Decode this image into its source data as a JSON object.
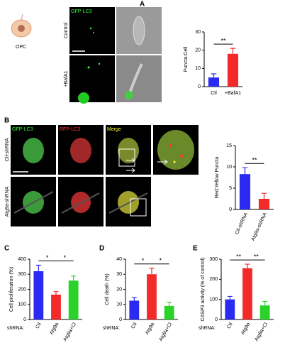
{
  "panels": {
    "A": {
      "icon_label": "OPC",
      "columns": [
        "GFP-LC3"
      ],
      "rows": [
        "Control",
        "+BafA1"
      ]
    },
    "B": {
      "columns": [
        "GFP-LC3",
        "RFP-LC3",
        "Merge"
      ],
      "rows": [
        "Ctl-shRNA",
        "Atg9a-shRNA"
      ]
    }
  },
  "chart_data": [
    {
      "type": "bar",
      "panel": "A",
      "y_label": "Puncta:Cell",
      "categories": [
        "Ctl",
        "+BafA1"
      ],
      "values": [
        5,
        18
      ],
      "errors": [
        2,
        3
      ],
      "colors": [
        "#2a2af2",
        "#f22a2a"
      ],
      "ylim": [
        0,
        30
      ],
      "yticks": [
        0,
        10,
        20,
        30
      ],
      "significance": [
        "**"
      ]
    },
    {
      "type": "bar",
      "panel": "B",
      "y_label": "Red:Yellow Puncta",
      "categories": [
        "Ctl-shRNA",
        "Atg9a-shRNA"
      ],
      "values": [
        8.3,
        2.5
      ],
      "errors": [
        1.5,
        1.3
      ],
      "colors": [
        "#2a2af2",
        "#f22a2a"
      ],
      "ylim": [
        0,
        15
      ],
      "yticks": [
        0,
        5,
        10,
        15
      ],
      "significance": [
        "**"
      ]
    },
    {
      "type": "bar",
      "panel": "C",
      "y_label": "Cell proliferation (%)",
      "x_label": "shRNA:",
      "categories": [
        "Ctl",
        "Atg9a",
        "Atg9a+Cl"
      ],
      "values": [
        320,
        165,
        258
      ],
      "errors": [
        40,
        20,
        30
      ],
      "colors": [
        "#2a2af2",
        "#f22a2a",
        "#2ad22a"
      ],
      "ylim": [
        0,
        400
      ],
      "yticks": [
        0,
        100,
        200,
        300,
        400
      ],
      "significance": [
        "*",
        "*"
      ]
    },
    {
      "type": "bar",
      "panel": "D",
      "y_label": "Cell death (%)",
      "x_label": "shRNA:",
      "categories": [
        "Ctl",
        "Atg9a",
        "Atg9a+Cl"
      ],
      "values": [
        12.5,
        30,
        9
      ],
      "errors": [
        2,
        4,
        2.5
      ],
      "colors": [
        "#2a2af2",
        "#f22a2a",
        "#2ad22a"
      ],
      "ylim": [
        0,
        40
      ],
      "yticks": [
        0,
        10,
        20,
        30,
        40
      ],
      "significance": [
        "*",
        "*"
      ]
    },
    {
      "type": "bar",
      "panel": "E",
      "y_label": "CASP3 activity (% of control)",
      "x_label": "shRNA:",
      "categories": [
        "Ctl",
        "Atg9a",
        "Atg9a+Cl"
      ],
      "values": [
        100,
        255,
        70
      ],
      "errors": [
        15,
        20,
        20
      ],
      "colors": [
        "#2a2af2",
        "#f22a2a",
        "#2ad22a"
      ],
      "ylim": [
        0,
        300
      ],
      "yticks": [
        0,
        100,
        200,
        300
      ],
      "significance": [
        "**",
        "**"
      ]
    }
  ]
}
